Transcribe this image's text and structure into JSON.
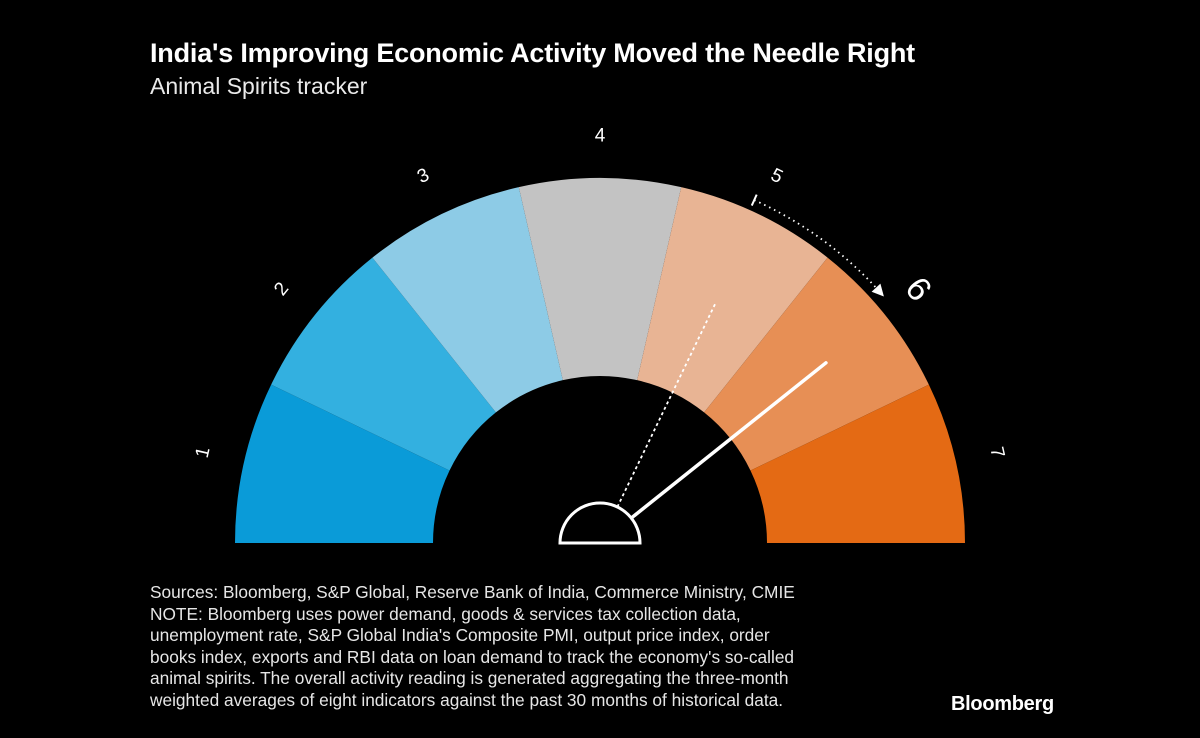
{
  "header": {
    "title": "India's Improving Economic Activity Moved the Needle Right",
    "subtitle": "Animal Spirits tracker"
  },
  "chart_data": {
    "type": "gauge",
    "title": "India's Improving Economic Activity Moved the Needle Right",
    "subtitle": "Animal Spirits tracker",
    "scale_min": 1,
    "scale_max": 7,
    "segments": [
      {
        "label": "1",
        "color": "#0a9bd8"
      },
      {
        "label": "2",
        "color": "#33b0e0"
      },
      {
        "label": "3",
        "color": "#8dcbe6"
      },
      {
        "label": "4",
        "color": "#c3c3c3"
      },
      {
        "label": "5",
        "color": "#e8b494"
      },
      {
        "label": "6",
        "color": "#e78f55"
      },
      {
        "label": "7",
        "color": "#e46a14"
      }
    ],
    "previous_reading": 5,
    "current_reading": 6,
    "highlighted_label": "6"
  },
  "footer": {
    "source_lines": [
      "Sources: Bloomberg, S&P Global, Reserve Bank of India, Commerce Ministry, CMIE",
      "NOTE: Bloomberg uses power demand, goods & services tax collection data,",
      "unemployment rate, S&P Global India's Composite PMI, output price index, order",
      "books index, exports and RBI data on loan demand to track the economy's so-called",
      "animal spirits. The overall activity reading is generated aggregating the three-month",
      "weighted averages of eight indicators against the past 30 months of historical data."
    ],
    "brand": "Bloomberg"
  }
}
